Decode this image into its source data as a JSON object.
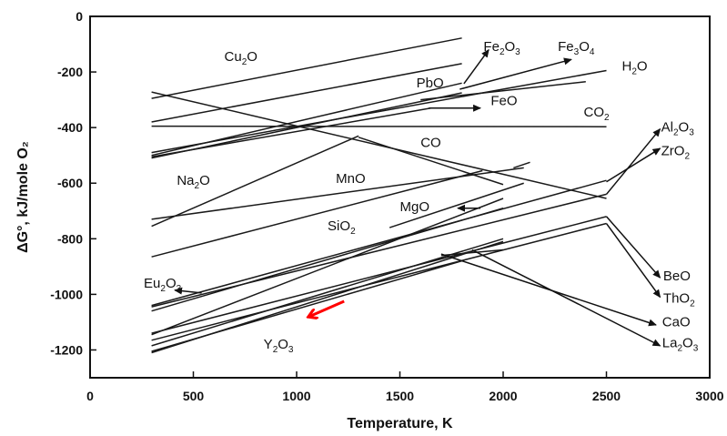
{
  "chart_data": {
    "type": "line",
    "title": "",
    "xlabel": "Temperature, K",
    "ylabel": "ΔG°, kJ/mole O₂",
    "xlim": [
      0,
      3000
    ],
    "ylim": [
      -1300,
      0
    ],
    "xticks": [
      "0",
      "500",
      "1000",
      "1500",
      "2000",
      "2500",
      "3000"
    ],
    "yticks": [
      "0",
      "-200",
      "-400",
      "-600",
      "-800",
      "-1000",
      "-1200"
    ],
    "grid": false,
    "legend": "none",
    "series": [
      {
        "label_parts": [
          [
            "Cu",
            ""
          ],
          [
            "2",
            "sub"
          ],
          [
            "O",
            ""
          ]
        ],
        "x": [
          298,
          1800
        ],
        "y": [
          -295,
          -78
        ]
      },
      {
        "label_parts": [
          [
            "PbO",
            ""
          ]
        ],
        "x": [
          298,
          1800
        ],
        "y": [
          -380,
          -170
        ]
      },
      {
        "label_parts": [
          [
            "Fe",
            ""
          ],
          [
            "2",
            "sub"
          ],
          [
            "O",
            ""
          ],
          [
            "3",
            "sub"
          ]
        ],
        "x": [
          298,
          1800
        ],
        "y": [
          -500,
          -240
        ]
      },
      {
        "label_parts": [
          [
            "Fe",
            ""
          ],
          [
            "3",
            "sub"
          ],
          [
            "O",
            ""
          ],
          [
            "4",
            "sub"
          ]
        ],
        "x": [
          298,
          1800
        ],
        "y": [
          -510,
          -275
        ]
      },
      {
        "label_parts": [
          [
            "H",
            ""
          ],
          [
            "2",
            "sub"
          ],
          [
            "O",
            ""
          ]
        ],
        "x": [
          298,
          2500
        ],
        "y": [
          -490,
          -195
        ]
      },
      {
        "label_parts": [
          [
            "FeO",
            ""
          ]
        ],
        "x": [
          298,
          1650
        ],
        "y": [
          -505,
          -330
        ]
      },
      {
        "label_parts": [
          [
            "CO",
            ""
          ],
          [
            "2",
            "sub"
          ]
        ],
        "x": [
          298,
          2500
        ],
        "y": [
          -395,
          -397
        ]
      },
      {
        "label_parts": [
          [
            "CO",
            ""
          ]
        ],
        "x": [
          298,
          2500
        ],
        "y": [
          -272,
          -655
        ]
      },
      {
        "label_parts": [
          [
            "Na",
            ""
          ],
          [
            "2",
            "sub"
          ],
          [
            "O",
            ""
          ]
        ],
        "x": [
          298,
          1300
        ],
        "y": [
          -755,
          -430
        ]
      },
      {
        "label_parts": [
          [
            "MnO",
            ""
          ]
        ],
        "x": [
          298,
          2100
        ],
        "y": [
          -730,
          -545
        ]
      },
      {
        "label_parts": [
          [
            "SiO",
            ""
          ],
          [
            "2",
            "sub"
          ]
        ],
        "x": [
          298,
          1900
        ],
        "y": [
          -865,
          -555
        ]
      },
      {
        "label_parts": [
          [
            "MgO",
            ""
          ]
        ],
        "x": [
          298,
          2000
        ],
        "y": [
          -1145,
          -655
        ]
      },
      {
        "label_parts": [
          [
            "Al",
            ""
          ],
          [
            "2",
            "sub"
          ],
          [
            "O",
            ""
          ],
          [
            "3",
            "sub"
          ]
        ],
        "x": [
          298,
          2500
        ],
        "y": [
          -1045,
          -640
        ]
      },
      {
        "label_parts": [
          [
            "ZrO",
            ""
          ],
          [
            "2",
            "sub"
          ]
        ],
        "x": [
          298,
          2500
        ],
        "y": [
          -1040,
          -590
        ]
      },
      {
        "label_parts": [
          [
            "Eu",
            ""
          ],
          [
            "2",
            "sub"
          ],
          [
            "O",
            ""
          ],
          [
            "3",
            "sub"
          ]
        ],
        "x": [
          298,
          2000
        ],
        "y": [
          -1060,
          -690
        ]
      },
      {
        "label_parts": [
          [
            "BeO",
            ""
          ]
        ],
        "x": [
          298,
          2500
        ],
        "y": [
          -1140,
          -720
        ]
      },
      {
        "label_parts": [
          [
            "ThO",
            ""
          ],
          [
            "2",
            "sub"
          ]
        ],
        "x": [
          298,
          2500
        ],
        "y": [
          -1165,
          -745
        ]
      },
      {
        "label_parts": [
          [
            "CaO",
            ""
          ]
        ],
        "x": [
          298,
          2000
        ],
        "y": [
          -1185,
          -800
        ]
      },
      {
        "label_parts": [
          [
            "La",
            ""
          ],
          [
            "2",
            "sub"
          ],
          [
            "O",
            ""
          ],
          [
            "3",
            "sub"
          ]
        ],
        "x": [
          298,
          2000
        ],
        "y": [
          -1210,
          -810
        ]
      },
      {
        "label_parts": [
          [
            "Y",
            ""
          ],
          [
            "2",
            "sub"
          ],
          [
            "O",
            ""
          ],
          [
            "3",
            "sub"
          ]
        ],
        "x": [
          298,
          1800
        ],
        "y": [
          -1205,
          -880
        ]
      }
    ],
    "extra_segments": [
      {
        "x": [
          1600,
          2400
        ],
        "y": [
          -300,
          -235
        ]
      },
      {
        "x": [
          1300,
          2000
        ],
        "y": [
          -435,
          -605
        ]
      },
      {
        "x": [
          2050,
          2130
        ],
        "y": [
          -545,
          -525
        ]
      },
      {
        "x": [
          1450,
          2100
        ],
        "y": [
          -760,
          -600
        ]
      },
      {
        "x": [
          1700,
          2000
        ],
        "y": [
          -860,
          -840
        ]
      }
    ],
    "label_arrows": [
      {
        "series": "Fe2O3",
        "from": [
          1810,
          -242
        ],
        "to": [
          1930,
          -120
        ]
      },
      {
        "series": "Fe3O4",
        "from": [
          1790,
          -262
        ],
        "to": [
          2330,
          -155
        ]
      },
      {
        "series": "FeO",
        "from": [
          1640,
          -330
        ],
        "to": [
          1890,
          -330
        ]
      },
      {
        "series": "MgO",
        "from": [
          1890,
          -690
        ],
        "to": [
          1780,
          -690
        ]
      },
      {
        "series": "Eu2O3",
        "from": [
          540,
          -995
        ],
        "to": [
          410,
          -985
        ]
      },
      {
        "series": "Al2O3",
        "from": [
          2500,
          -640
        ],
        "to": [
          2760,
          -405
        ]
      },
      {
        "series": "ZrO2",
        "from": [
          2500,
          -595
        ],
        "to": [
          2760,
          -475
        ]
      },
      {
        "series": "BeO",
        "from": [
          2500,
          -720
        ],
        "to": [
          2760,
          -940
        ]
      },
      {
        "series": "ThO2",
        "from": [
          2500,
          -745
        ],
        "to": [
          2760,
          -1010
        ]
      },
      {
        "series": "CaO",
        "from": [
          1700,
          -855
        ],
        "to": [
          2740,
          -1110
        ]
      },
      {
        "series": "La2O3",
        "from": [
          1850,
          -840
        ],
        "to": [
          2760,
          -1185
        ]
      }
    ],
    "text_labels": [
      {
        "parts": [
          [
            "Cu",
            ""
          ],
          [
            "2",
            "sub"
          ],
          [
            "O",
            ""
          ]
        ],
        "x": 650,
        "y": -160
      },
      {
        "parts": [
          [
            "PbO",
            ""
          ]
        ],
        "x": 1580,
        "y": -255
      },
      {
        "parts": [
          [
            "Fe",
            ""
          ],
          [
            "2",
            "sub"
          ],
          [
            "O",
            ""
          ],
          [
            "3",
            "sub"
          ]
        ],
        "x": 1905,
        "y": -125
      },
      {
        "parts": [
          [
            "Fe",
            ""
          ],
          [
            "3",
            "sub"
          ],
          [
            "O",
            ""
          ],
          [
            "4",
            "sub"
          ]
        ],
        "x": 2265,
        "y": -125
      },
      {
        "parts": [
          [
            "H",
            ""
          ],
          [
            "2",
            "sub"
          ],
          [
            "O",
            ""
          ]
        ],
        "x": 2575,
        "y": -195
      },
      {
        "parts": [
          [
            "FeO",
            ""
          ]
        ],
        "x": 1940,
        "y": -320
      },
      {
        "parts": [
          [
            "CO",
            ""
          ],
          [
            "2",
            "sub"
          ]
        ],
        "x": 2390,
        "y": -360
      },
      {
        "parts": [
          [
            "CO",
            ""
          ]
        ],
        "x": 1600,
        "y": -470
      },
      {
        "parts": [
          [
            "Na",
            ""
          ],
          [
            "2",
            "sub"
          ],
          [
            "O",
            ""
          ]
        ],
        "x": 420,
        "y": -605
      },
      {
        "parts": [
          [
            "MnO",
            ""
          ]
        ],
        "x": 1190,
        "y": -600
      },
      {
        "parts": [
          [
            "MgO",
            ""
          ]
        ],
        "x": 1500,
        "y": -700
      },
      {
        "parts": [
          [
            "SiO",
            ""
          ],
          [
            "2",
            "sub"
          ]
        ],
        "x": 1150,
        "y": -770
      },
      {
        "parts": [
          [
            "Al",
            ""
          ],
          [
            "2",
            "sub"
          ],
          [
            "O",
            ""
          ],
          [
            "3",
            "sub"
          ]
        ],
        "x": 2765,
        "y": -415
      },
      {
        "parts": [
          [
            "ZrO",
            ""
          ],
          [
            "2",
            "sub"
          ]
        ],
        "x": 2765,
        "y": -500
      },
      {
        "parts": [
          [
            "Eu",
            ""
          ],
          [
            "2",
            "sub"
          ],
          [
            "O",
            ""
          ],
          [
            "3",
            "sub"
          ]
        ],
        "x": 260,
        "y": -975
      },
      {
        "parts": [
          [
            "BeO",
            ""
          ]
        ],
        "x": 2775,
        "y": -950
      },
      {
        "parts": [
          [
            "ThO",
            ""
          ],
          [
            "2",
            "sub"
          ]
        ],
        "x": 2775,
        "y": -1030
      },
      {
        "parts": [
          [
            "CaO",
            ""
          ]
        ],
        "x": 2770,
        "y": -1115
      },
      {
        "parts": [
          [
            "La",
            ""
          ],
          [
            "2",
            "sub"
          ],
          [
            "O",
            ""
          ],
          [
            "3",
            "sub"
          ]
        ],
        "x": 2770,
        "y": -1190
      },
      {
        "parts": [
          [
            "Y",
            ""
          ],
          [
            "2",
            "sub"
          ],
          [
            "O",
            ""
          ],
          [
            "3",
            "sub"
          ]
        ],
        "x": 840,
        "y": -1195
      }
    ],
    "annotation_arrow": {
      "color": "#ff0000",
      "from": [
        1230,
        -1025
      ],
      "to": [
        1060,
        -1080
      ]
    }
  }
}
